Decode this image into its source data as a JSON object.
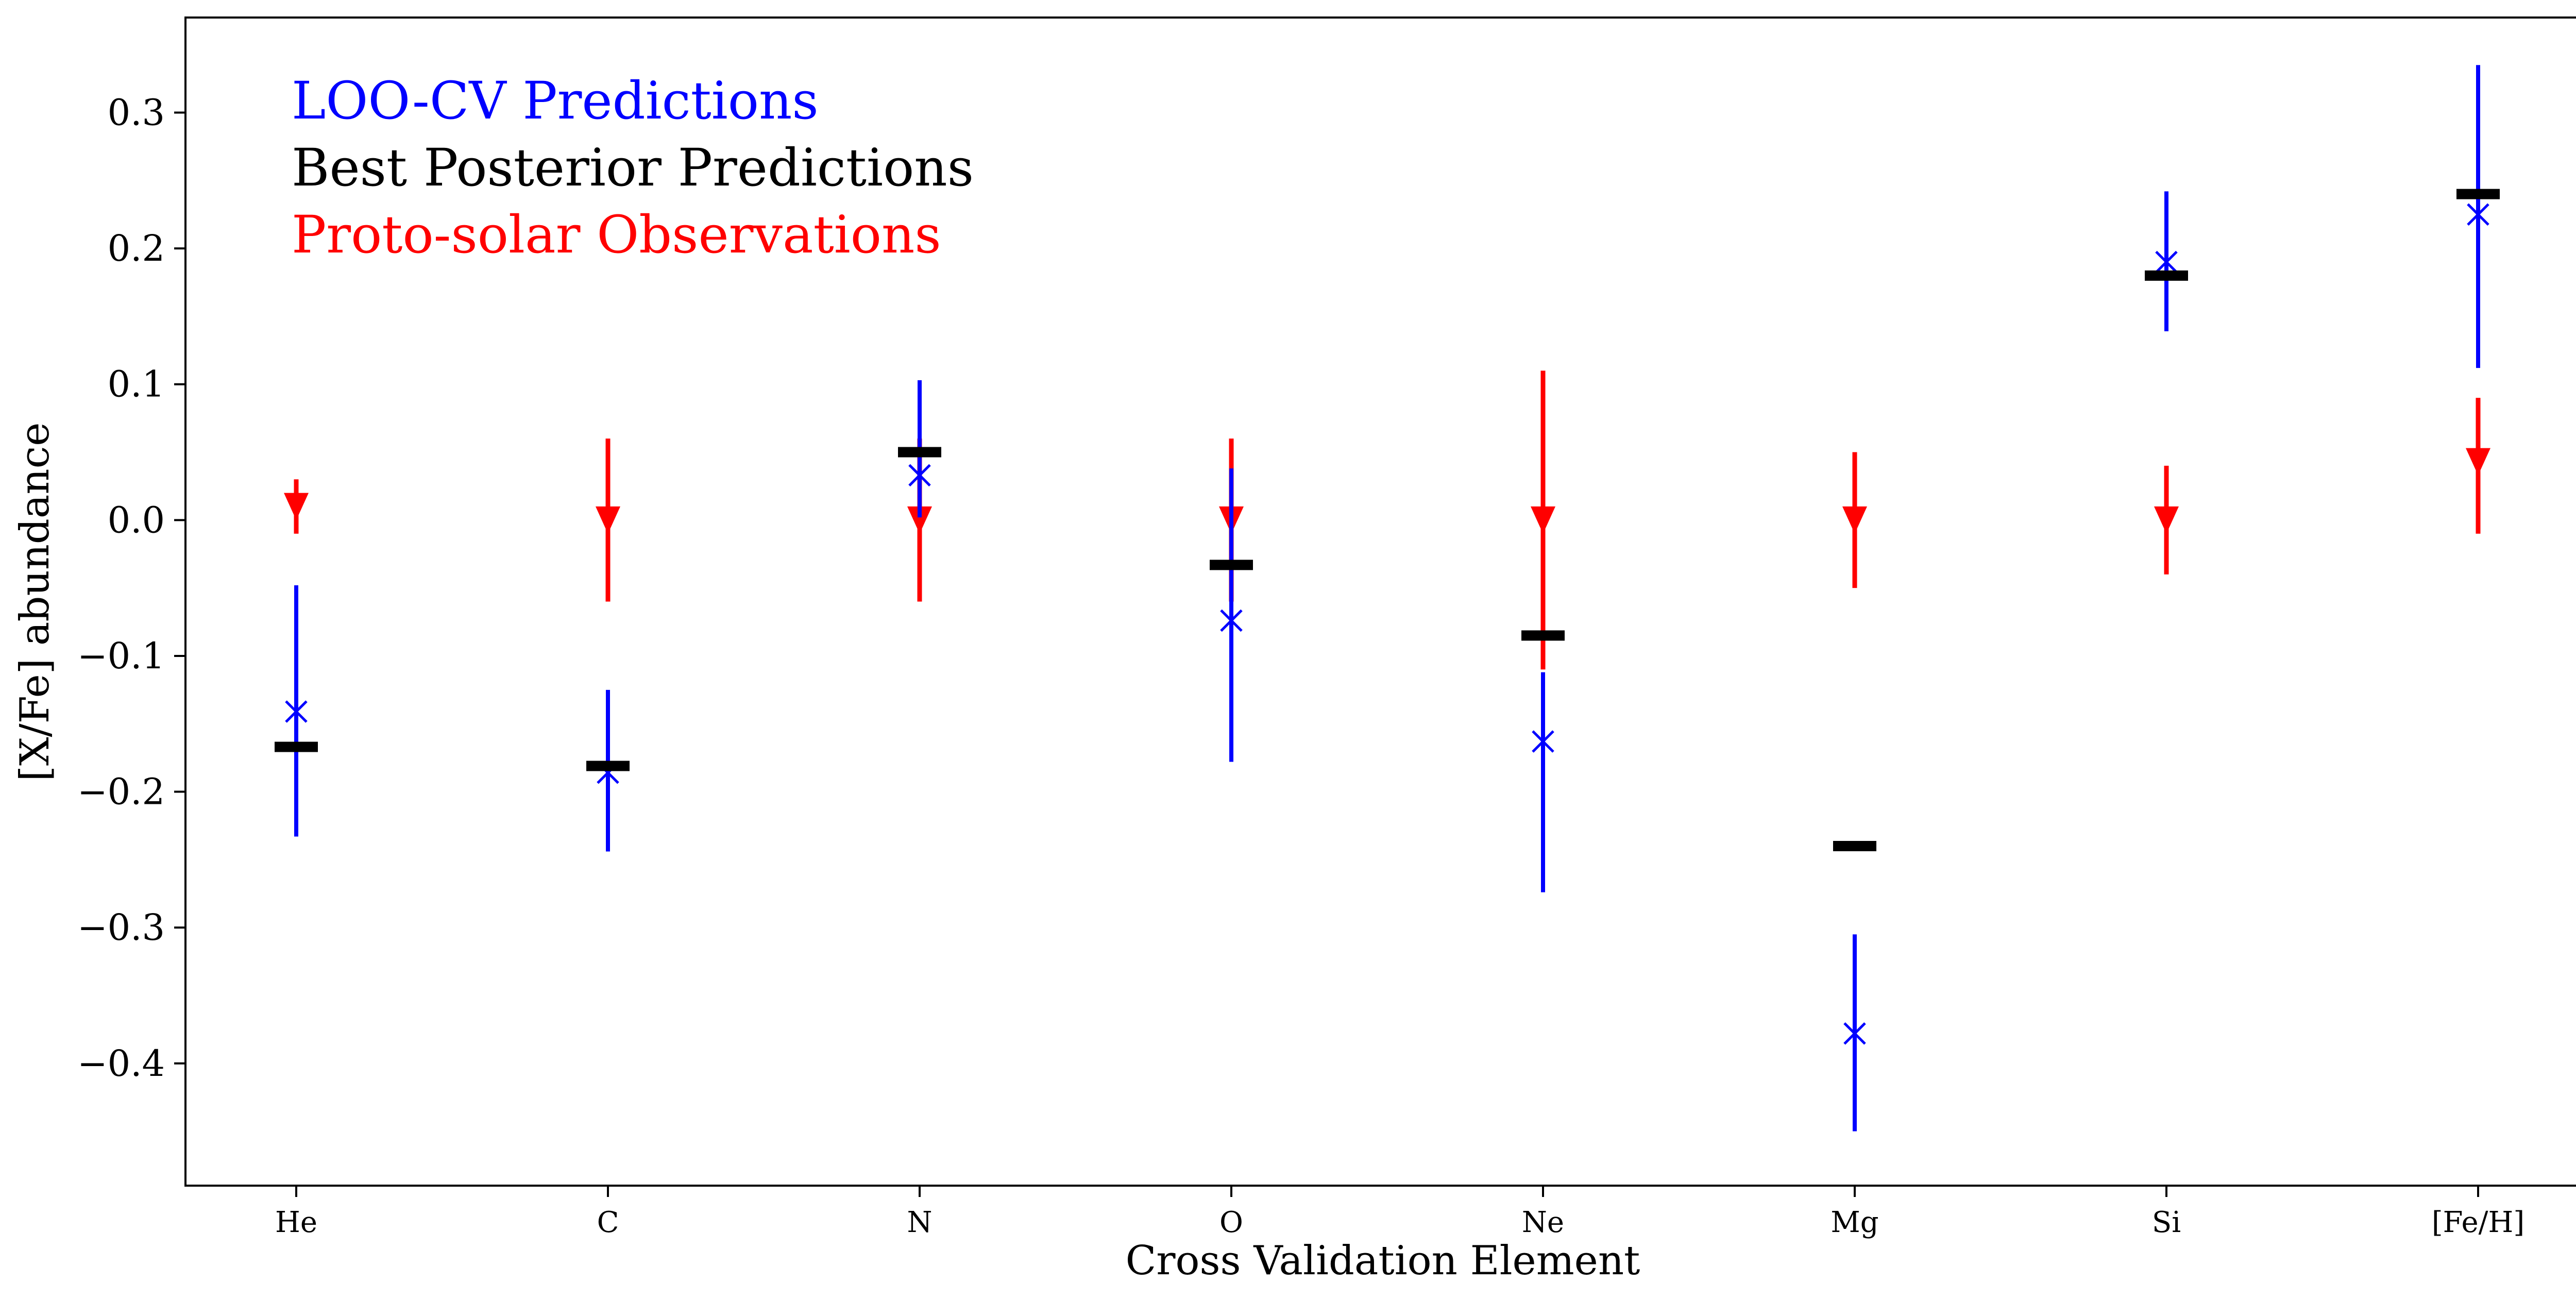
{
  "chart_data": {
    "type": "scatter",
    "title": "",
    "xlabel": "Cross Validation Element",
    "ylabel": "[X/Fe] abundance",
    "categories": [
      "He",
      "C",
      "N",
      "O",
      "Ne",
      "Mg",
      "Si",
      "[Fe/H]"
    ],
    "ylim": [
      -0.49,
      0.37
    ],
    "yticks": [
      0.3,
      0.2,
      0.1,
      0.0,
      -0.1,
      -0.2,
      -0.3,
      -0.4
    ],
    "ytick_labels": [
      "0.3",
      "0.2",
      "0.1",
      "0.0",
      "−0.1",
      "−0.2",
      "−0.3",
      "−0.4"
    ],
    "grid": false,
    "legend": {
      "placement": "top-left"
    },
    "series": [
      {
        "name": "LOO-CV Predictions",
        "color": "#0000ff",
        "marker": "x",
        "values": [
          -0.141,
          -0.186,
          0.033,
          -0.074,
          -0.163,
          -0.378,
          0.19,
          0.225
        ],
        "err_low": [
          -0.233,
          -0.244,
          0.002,
          -0.178,
          -0.274,
          -0.45,
          0.139,
          0.112
        ],
        "err_high": [
          -0.048,
          -0.125,
          0.103,
          0.038,
          -0.112,
          -0.305,
          0.242,
          0.335
        ]
      },
      {
        "name": "Best Posterior Predictions",
        "color": "#000000",
        "marker": "hline",
        "values": [
          -0.167,
          -0.181,
          0.05,
          -0.033,
          -0.085,
          -0.24,
          0.18,
          0.24
        ]
      },
      {
        "name": "Proto-solar Observations",
        "color": "#ff0000",
        "marker": "triangle-down",
        "values": [
          0.01,
          0.0,
          0.0,
          0.0,
          0.0,
          0.0,
          0.0,
          0.043
        ],
        "err_low": [
          -0.01,
          -0.06,
          -0.06,
          -0.06,
          -0.11,
          -0.05,
          -0.04,
          -0.01
        ],
        "err_high": [
          0.03,
          0.06,
          0.06,
          0.06,
          0.11,
          0.05,
          0.04,
          0.09
        ]
      }
    ]
  }
}
